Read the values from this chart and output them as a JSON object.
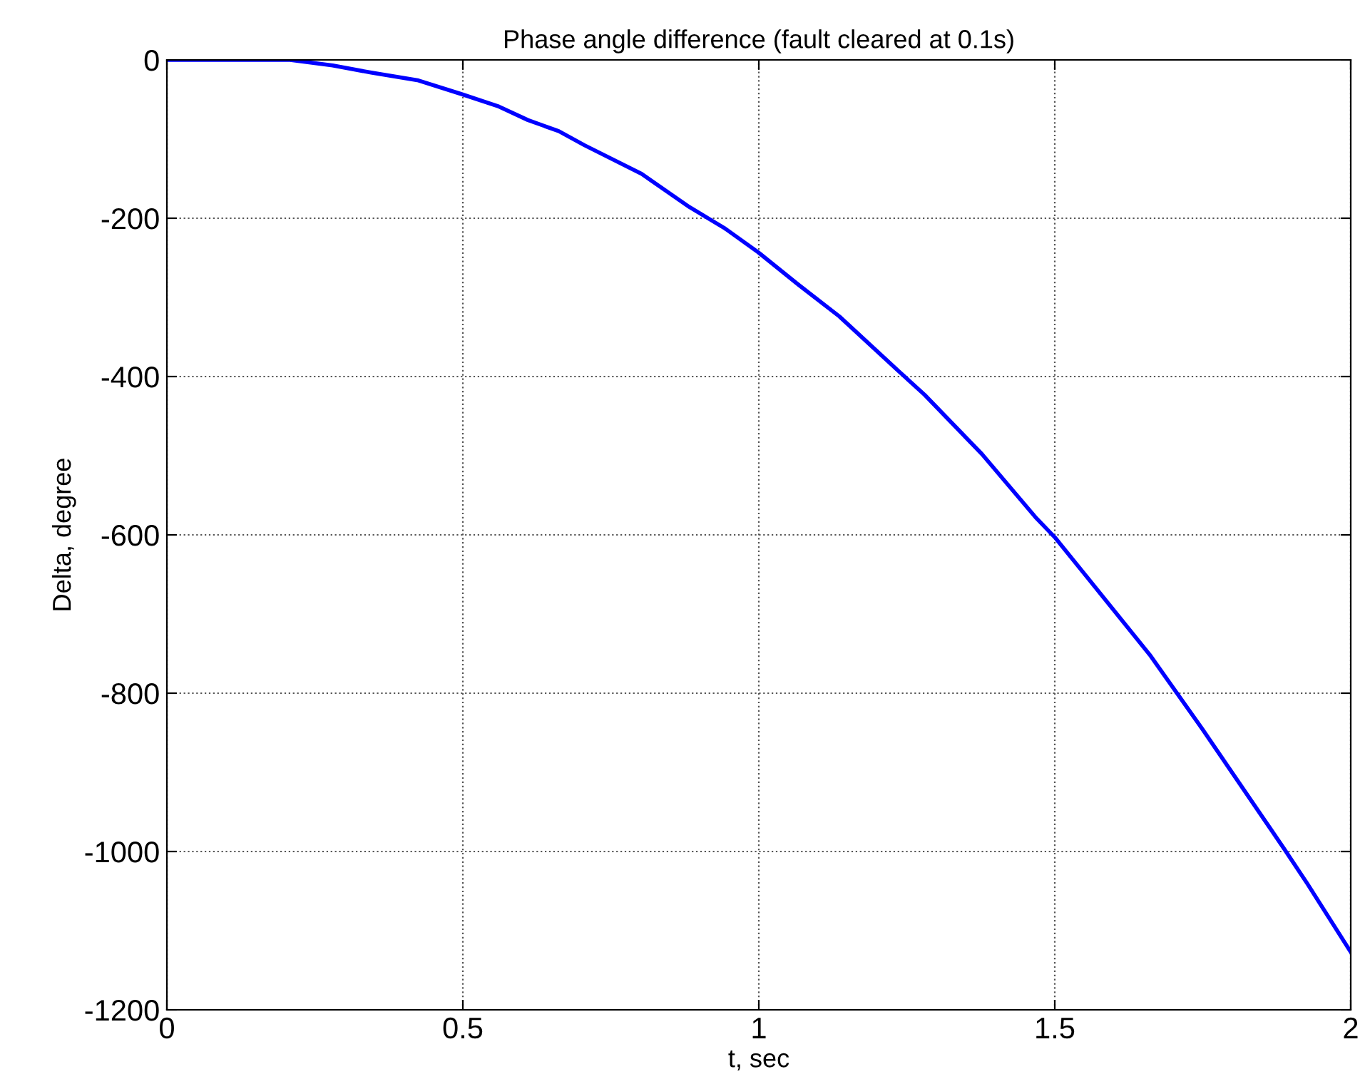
{
  "chart_data": {
    "type": "line",
    "title": "Phase angle difference (fault cleared at 0.1s)",
    "xlabel": "t, sec",
    "ylabel": "Delta, degree",
    "series": [
      {
        "color": "#0000ff",
        "x": [
          0,
          0.108,
          0.128,
          0.208,
          0.28,
          0.345,
          0.425,
          0.497,
          0.561,
          0.61,
          0.662,
          0.706,
          0.802,
          0.883,
          0.943,
          0.999,
          1.067,
          1.136,
          1.236,
          1.28,
          1.377,
          1.469,
          1.5,
          1.565,
          1.662,
          1.75,
          1.887,
          1.927,
          2.0
        ],
        "values": [
          0,
          0,
          0,
          0,
          -7,
          -16,
          -26,
          -43,
          -59,
          -76,
          -90,
          -108,
          -144,
          -186,
          -213,
          -243,
          -284,
          -324,
          -393,
          -423,
          -498,
          -579,
          -603,
          -663,
          -753,
          -846,
          -996,
          -1041,
          -1127
        ]
      }
    ],
    "xlim": [
      0,
      2
    ],
    "xticks": [
      0,
      0.5,
      1,
      1.5,
      2
    ],
    "ylim": [
      -1200,
      0
    ],
    "yticks": [
      -1200,
      -1000,
      -800,
      -600,
      -400,
      -200,
      0
    ],
    "grid": true,
    "marker": "none",
    "line_style": "solid"
  }
}
